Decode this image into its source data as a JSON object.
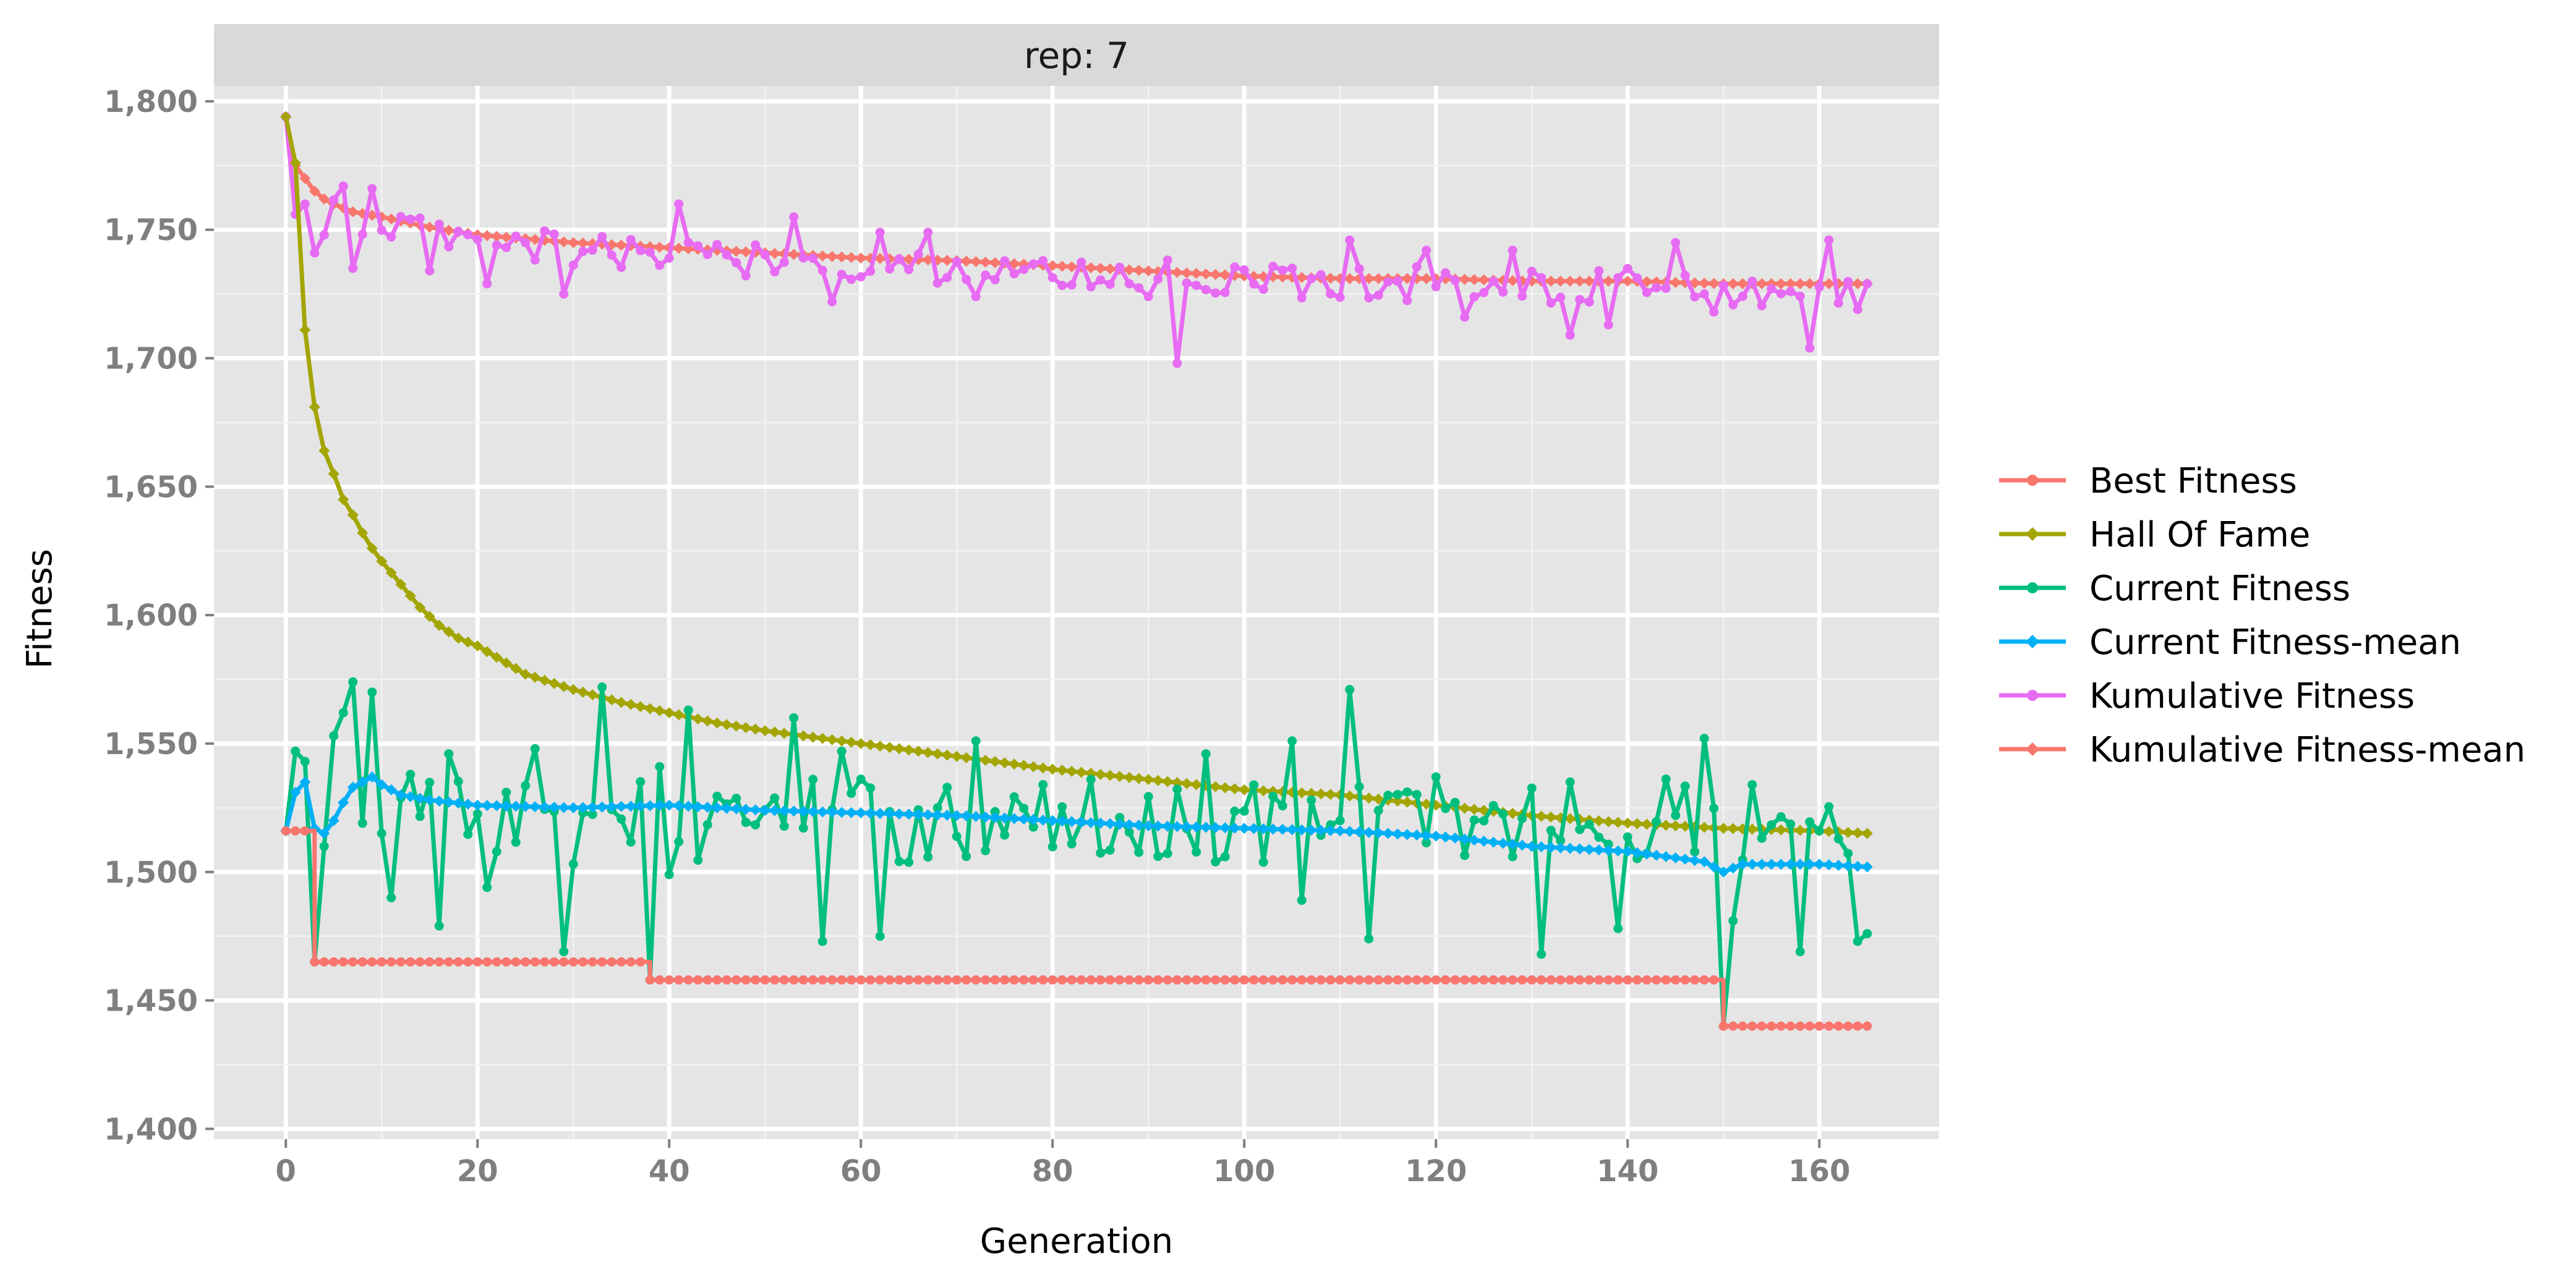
{
  "chart_data": {
    "type": "line",
    "facet_label": "rep: 7",
    "xlabel": "Generation",
    "ylabel": "Fitness",
    "xlim": [
      -7.5,
      172.5
    ],
    "ylim": [
      1396,
      1806
    ],
    "x_ticks": [
      0,
      20,
      40,
      60,
      80,
      100,
      120,
      140,
      160
    ],
    "y_ticks": [
      1400,
      1450,
      1500,
      1550,
      1600,
      1650,
      1700,
      1750,
      1800
    ],
    "y_tick_labels": [
      "1,400",
      "1,450",
      "1,500",
      "1,550",
      "1,600",
      "1,650",
      "1,700",
      "1,750",
      "1,800"
    ],
    "x_range": [
      0,
      165
    ],
    "grid": true,
    "legend_position": "right",
    "series": [
      {
        "name": "Best Fitness",
        "color": "#F8766D",
        "marker": "circle",
        "shape": "step",
        "steps": [
          [
            0,
            1516
          ],
          [
            3,
            1465
          ],
          [
            38,
            1458
          ],
          [
            150,
            1440
          ]
        ]
      },
      {
        "name": "Hall Of Fame",
        "color": "#A3A500",
        "marker": "diamond",
        "shape": "decay",
        "anchors": [
          [
            0,
            1794
          ],
          [
            1,
            1776
          ],
          [
            2,
            1711
          ],
          [
            3,
            1681
          ],
          [
            4,
            1664
          ],
          [
            5,
            1655
          ],
          [
            6,
            1645
          ],
          [
            7,
            1639
          ],
          [
            8,
            1632
          ],
          [
            9,
            1626
          ],
          [
            10,
            1621
          ],
          [
            12,
            1612
          ],
          [
            14,
            1603
          ],
          [
            16,
            1596
          ],
          [
            18,
            1591
          ],
          [
            20,
            1588
          ],
          [
            25,
            1577
          ],
          [
            30,
            1571
          ],
          [
            35,
            1566
          ],
          [
            40,
            1562
          ],
          [
            45,
            1558
          ],
          [
            50,
            1555
          ],
          [
            60,
            1550
          ],
          [
            70,
            1545
          ],
          [
            80,
            1540
          ],
          [
            90,
            1536
          ],
          [
            100,
            1532
          ],
          [
            110,
            1530
          ],
          [
            120,
            1526
          ],
          [
            130,
            1522
          ],
          [
            140,
            1519
          ],
          [
            150,
            1517
          ],
          [
            160,
            1516
          ],
          [
            165,
            1515
          ]
        ]
      },
      {
        "name": "Current Fitness",
        "color": "#00BF7D",
        "marker": "circle",
        "shape": "noisy",
        "highlights": [
          [
            0,
            1516
          ],
          [
            1,
            1547
          ],
          [
            2,
            1543
          ],
          [
            3,
            1465
          ],
          [
            4,
            1510
          ],
          [
            5,
            1553
          ],
          [
            6,
            1562
          ],
          [
            7,
            1574
          ],
          [
            8,
            1519
          ],
          [
            9,
            1570
          ],
          [
            10,
            1515
          ],
          [
            11,
            1490
          ],
          [
            13,
            1538
          ],
          [
            16,
            1479
          ],
          [
            17,
            1546
          ],
          [
            21,
            1494
          ],
          [
            26,
            1548
          ],
          [
            29,
            1469
          ],
          [
            33,
            1572
          ],
          [
            38,
            1458
          ],
          [
            39,
            1541
          ],
          [
            40,
            1499
          ],
          [
            42,
            1563
          ],
          [
            53,
            1560
          ],
          [
            56,
            1473
          ],
          [
            58,
            1547
          ],
          [
            62,
            1475
          ],
          [
            72,
            1551
          ],
          [
            96,
            1546
          ],
          [
            105,
            1551
          ],
          [
            106,
            1489
          ],
          [
            111,
            1571
          ],
          [
            113,
            1474
          ],
          [
            120,
            1537
          ],
          [
            131,
            1468
          ],
          [
            134,
            1535
          ],
          [
            139,
            1478
          ],
          [
            148,
            1552
          ],
          [
            150,
            1440
          ],
          [
            151,
            1481
          ],
          [
            153,
            1534
          ],
          [
            158,
            1469
          ],
          [
            160,
            1516
          ],
          [
            164,
            1473
          ],
          [
            165,
            1476
          ]
        ],
        "baseline": 1520,
        "spread": 17
      },
      {
        "name": "Current Fitness-mean",
        "color": "#00B0F6",
        "marker": "diamond",
        "shape": "smooth",
        "anchors": [
          [
            0,
            1516
          ],
          [
            1,
            1531
          ],
          [
            2,
            1535
          ],
          [
            3,
            1517
          ],
          [
            4,
            1515
          ],
          [
            5,
            1520
          ],
          [
            6,
            1527
          ],
          [
            7,
            1533
          ],
          [
            8,
            1535
          ],
          [
            9,
            1537
          ],
          [
            10,
            1534
          ],
          [
            12,
            1530
          ],
          [
            15,
            1528
          ],
          [
            20,
            1526
          ],
          [
            30,
            1525
          ],
          [
            40,
            1526
          ],
          [
            50,
            1524
          ],
          [
            60,
            1523
          ],
          [
            70,
            1522
          ],
          [
            80,
            1520
          ],
          [
            90,
            1518
          ],
          [
            100,
            1517
          ],
          [
            110,
            1516
          ],
          [
            120,
            1514
          ],
          [
            130,
            1510
          ],
          [
            140,
            1508
          ],
          [
            148,
            1504
          ],
          [
            150,
            1500
          ],
          [
            152,
            1503
          ],
          [
            160,
            1503
          ],
          [
            165,
            1502
          ]
        ]
      },
      {
        "name": "Kumulative Fitness",
        "color": "#E76BF3",
        "marker": "circle",
        "shape": "noisy",
        "highlights": [
          [
            0,
            1794
          ],
          [
            1,
            1756
          ],
          [
            2,
            1760
          ],
          [
            3,
            1741
          ],
          [
            4,
            1748
          ],
          [
            6,
            1767
          ],
          [
            7,
            1735
          ],
          [
            9,
            1766
          ],
          [
            15,
            1734
          ],
          [
            21,
            1729
          ],
          [
            29,
            1725
          ],
          [
            41,
            1760
          ],
          [
            53,
            1755
          ],
          [
            57,
            1722
          ],
          [
            62,
            1749
          ],
          [
            67,
            1749
          ],
          [
            72,
            1724
          ],
          [
            90,
            1724
          ],
          [
            93,
            1698
          ],
          [
            111,
            1746
          ],
          [
            119,
            1742
          ],
          [
            123,
            1716
          ],
          [
            128,
            1742
          ],
          [
            134,
            1709
          ],
          [
            138,
            1713
          ],
          [
            145,
            1745
          ],
          [
            149,
            1718
          ],
          [
            159,
            1704
          ],
          [
            161,
            1746
          ],
          [
            164,
            1719
          ],
          [
            165,
            1729
          ]
        ],
        "trend": [
          [
            0,
            1760
          ],
          [
            20,
            1744
          ],
          [
            40,
            1740
          ],
          [
            60,
            1737
          ],
          [
            80,
            1733
          ],
          [
            100,
            1731
          ],
          [
            120,
            1729
          ],
          [
            140,
            1728
          ],
          [
            165,
            1726
          ]
        ],
        "spread": 7
      },
      {
        "name": "Kumulative Fitness-mean",
        "color": "#F8766D",
        "marker": "diamond",
        "shape": "decay",
        "anchors": [
          [
            0,
            1794
          ],
          [
            1,
            1775
          ],
          [
            2,
            1770
          ],
          [
            3,
            1765
          ],
          [
            4,
            1762
          ],
          [
            5,
            1760
          ],
          [
            7,
            1757
          ],
          [
            10,
            1755
          ],
          [
            15,
            1751
          ],
          [
            20,
            1748
          ],
          [
            30,
            1745
          ],
          [
            40,
            1743
          ],
          [
            50,
            1741
          ],
          [
            60,
            1739
          ],
          [
            70,
            1738
          ],
          [
            80,
            1736
          ],
          [
            90,
            1734
          ],
          [
            100,
            1732
          ],
          [
            110,
            1731
          ],
          [
            120,
            1731
          ],
          [
            130,
            1730
          ],
          [
            140,
            1730
          ],
          [
            150,
            1729
          ],
          [
            165,
            1729
          ]
        ]
      }
    ]
  }
}
